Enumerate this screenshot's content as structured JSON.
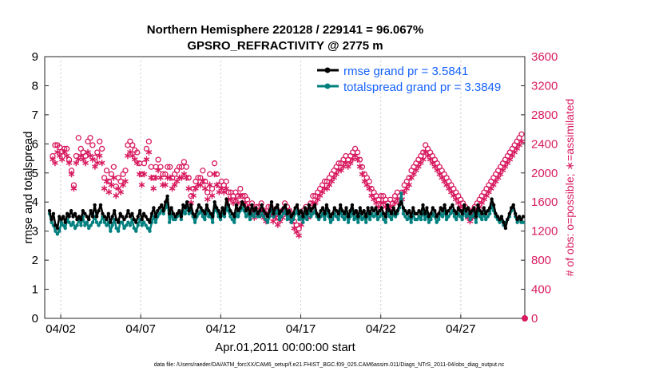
{
  "chart_data": {
    "type": "line",
    "title_line1": "Northern Hemisphere 220128 / 229141 = 96.067%",
    "title_line2": "GPSRO_REFRACTIVITY @ 2775 m",
    "xlabel": "Apr.01,2011 00:00:00 start",
    "ylabel_left": "rmse and totalspread",
    "ylabel_right": "# of obs: o=possible; ∗=assimilated",
    "footer": "data file: /Users/raeder/DAI/ATM_forcXX/CAM6_setup/f.e21.FHIST_BGC.f09_025.CAM6assim.011/Diags_NTrS_2011-04/obs_diag_output.nc",
    "x_ticks": [
      {
        "day": 2,
        "label": "04/02"
      },
      {
        "day": 7,
        "label": "04/07"
      },
      {
        "day": 12,
        "label": "04/12"
      },
      {
        "day": 17,
        "label": "04/17"
      },
      {
        "day": 22,
        "label": "04/22"
      },
      {
        "day": 27,
        "label": "04/27"
      }
    ],
    "xlim": [
      1,
      31
    ],
    "ylim_left": [
      0,
      9
    ],
    "yticks_left": [
      "0",
      "1",
      "2",
      "3",
      "4",
      "5",
      "6",
      "7",
      "8",
      "9"
    ],
    "ylim_right": [
      0,
      3600
    ],
    "yticks_right": [
      "0",
      "400",
      "800",
      "1200",
      "1600",
      "2000",
      "2400",
      "2800",
      "3200",
      "3600"
    ],
    "colors": {
      "rmse": "#000000",
      "spread": "#00807f",
      "obs": "#d81b60"
    },
    "series": [
      {
        "name": "rmse grand pr = 3.5841",
        "key": "rmse",
        "values": [
          3.7,
          3.4,
          3.6,
          3.2,
          3.1,
          3.5,
          3.4,
          3.5,
          3.3,
          3.6,
          3.5,
          3.7,
          3.5,
          3.6,
          3.4,
          3.5,
          3.4,
          3.7,
          3.6,
          3.5,
          3.4,
          3.7,
          3.5,
          3.9,
          3.5,
          3.7,
          3.9,
          3.6,
          3.5,
          3.4,
          3.6,
          3.3,
          3.5,
          3.7,
          3.4,
          3.3,
          3.6,
          3.5,
          3.4,
          3.5,
          3.7,
          3.5,
          3.6,
          3.4,
          3.3,
          3.5,
          3.7,
          3.4,
          3.6,
          3.5,
          3.4,
          3.3,
          3.6,
          3.8,
          3.5,
          3.7,
          3.8,
          3.9,
          3.7,
          4.0,
          4.2,
          3.6,
          3.8,
          3.6,
          3.5,
          3.6,
          3.7,
          3.5,
          3.9,
          3.8,
          4.0,
          3.7,
          3.9,
          3.6,
          3.5,
          3.7,
          3.9,
          3.8,
          3.7,
          3.6,
          3.9,
          3.7,
          3.6,
          3.5,
          4.0,
          3.8,
          3.7,
          3.5,
          3.8,
          3.6,
          4.1,
          3.9,
          3.7,
          3.6,
          3.5,
          3.9,
          3.7,
          3.8,
          4.0,
          3.9,
          3.7,
          3.8,
          3.6,
          3.9,
          3.7,
          3.8,
          3.6,
          3.7,
          3.9,
          3.7,
          3.6,
          3.5,
          3.7,
          4.0,
          3.6,
          3.8,
          3.9,
          3.6,
          3.7,
          3.8,
          3.9,
          3.6,
          3.7,
          3.5,
          3.6,
          3.8,
          3.9,
          3.6,
          3.7,
          3.5,
          3.8,
          3.6,
          3.9,
          3.7,
          3.8,
          3.9,
          3.6,
          3.5,
          3.7,
          3.8,
          3.6,
          3.9,
          3.7,
          3.5,
          3.6,
          3.8,
          3.7,
          3.6,
          3.9,
          3.7,
          3.6,
          3.8,
          3.5,
          3.7,
          3.9,
          3.6,
          3.7,
          3.5,
          3.8,
          3.6,
          3.7,
          3.5,
          3.8,
          3.6,
          3.8,
          3.7,
          3.8,
          3.6,
          3.7,
          3.8,
          3.6,
          3.5,
          3.9,
          3.7,
          3.6,
          3.8,
          3.6,
          3.7,
          3.9,
          4.0,
          3.8,
          3.7,
          3.6,
          3.7,
          3.5,
          3.8,
          3.6,
          3.6,
          3.7,
          3.6,
          3.9,
          3.6,
          3.8,
          3.5,
          3.6,
          3.8,
          3.7,
          3.5,
          3.6,
          3.8,
          3.7,
          3.9,
          3.6,
          3.7,
          3.8,
          3.9,
          3.7,
          3.6,
          3.8,
          3.7,
          3.6,
          3.9,
          3.7,
          3.8,
          3.6,
          3.7,
          3.8,
          3.5,
          3.9,
          3.7,
          3.6,
          3.8,
          3.6,
          3.7,
          3.8,
          4.1,
          3.9,
          3.6,
          3.5,
          3.4,
          3.5,
          3.3,
          3.1,
          3.4,
          3.6,
          3.8,
          3.9,
          3.6,
          3.4,
          3.5,
          3.4,
          3.5
        ]
      },
      {
        "name": "totalspread grand pr = 3.3849",
        "key": "spread",
        "values": [
          3.6,
          3.3,
          3.2,
          3.0,
          2.9,
          3.0,
          3.3,
          3.2,
          3.1,
          3.4,
          3.3,
          3.2,
          3.3,
          3.1,
          3.2,
          3.4,
          3.2,
          3.5,
          3.2,
          3.3,
          3.1,
          3.2,
          3.3,
          3.5,
          3.3,
          3.2,
          3.3,
          3.5,
          3.3,
          3.2,
          3.3,
          3.0,
          3.2,
          3.4,
          3.1,
          3.0,
          3.3,
          3.3,
          3.1,
          3.2,
          3.3,
          3.2,
          3.4,
          3.1,
          3.0,
          3.2,
          3.4,
          3.2,
          3.3,
          3.2,
          3.1,
          3.0,
          3.3,
          3.5,
          3.3,
          3.5,
          3.6,
          3.7,
          3.6,
          3.8,
          4.1,
          3.3,
          3.6,
          3.4,
          3.4,
          3.5,
          3.6,
          3.4,
          3.7,
          3.6,
          3.8,
          3.6,
          3.7,
          3.5,
          3.3,
          3.5,
          3.6,
          3.7,
          3.5,
          3.4,
          3.7,
          3.5,
          3.5,
          3.3,
          3.8,
          3.7,
          3.5,
          3.4,
          3.6,
          3.5,
          3.8,
          3.7,
          3.5,
          3.4,
          3.3,
          3.6,
          3.5,
          3.7,
          3.8,
          3.7,
          3.5,
          3.6,
          3.4,
          3.6,
          3.5,
          3.7,
          3.5,
          3.5,
          3.6,
          3.5,
          3.4,
          3.3,
          3.5,
          3.8,
          3.5,
          3.6,
          3.7,
          3.4,
          3.5,
          3.6,
          3.7,
          3.4,
          3.5,
          3.3,
          3.4,
          3.6,
          3.7,
          3.4,
          3.5,
          3.3,
          3.6,
          3.4,
          3.7,
          3.5,
          3.6,
          3.7,
          3.5,
          3.4,
          3.5,
          3.6,
          3.4,
          3.7,
          3.5,
          3.3,
          3.4,
          3.6,
          3.5,
          3.4,
          3.7,
          3.5,
          3.4,
          3.6,
          3.3,
          3.5,
          3.7,
          3.4,
          3.5,
          3.3,
          3.6,
          3.4,
          3.5,
          3.3,
          3.6,
          3.4,
          3.6,
          3.5,
          3.6,
          3.4,
          3.5,
          3.6,
          3.4,
          3.3,
          3.7,
          3.5,
          3.4,
          3.6,
          3.5,
          3.6,
          3.8,
          4.3,
          3.6,
          3.5,
          3.4,
          3.5,
          3.3,
          3.6,
          3.4,
          3.4,
          3.5,
          3.4,
          3.7,
          3.4,
          3.6,
          3.3,
          3.4,
          3.6,
          3.5,
          3.3,
          3.4,
          3.6,
          3.5,
          3.7,
          3.4,
          3.5,
          3.6,
          3.7,
          3.5,
          3.4,
          3.6,
          3.5,
          3.4,
          3.7,
          3.5,
          3.6,
          3.4,
          3.5,
          3.6,
          3.3,
          3.7,
          3.5,
          3.4,
          3.6,
          3.4,
          3.5,
          3.6,
          3.9,
          3.7,
          3.5,
          3.4,
          3.3,
          3.4,
          3.2,
          3.3,
          3.4,
          3.5,
          3.7,
          3.9,
          3.5,
          3.3,
          3.4,
          3.3,
          3.3
        ]
      },
      {
        "name": "possible",
        "key": "possible",
        "values": [
          2200,
          2350,
          2350,
          2320,
          2260,
          2300,
          2300,
          2150,
          2000,
          1800,
          2200,
          2450,
          2300,
          2250,
          2200,
          2400,
          2450,
          2350,
          2180,
          2250,
          2400,
          2300,
          1900,
          2000,
          1850,
          1950,
          2050,
          1780,
          1900,
          1850,
          1950,
          2000,
          2350,
          2400,
          2350,
          2280,
          2250,
          2100,
          1950,
          2100,
          2300,
          2400,
          2050,
          1900,
          2050,
          2150,
          2050,
          1950,
          1950,
          2050,
          2050,
          1900,
          1950,
          2000,
          2050,
          2050,
          2120,
          2050,
          1900,
          1650,
          1750,
          1850,
          1900,
          1900,
          2000,
          1850,
          1700,
          1950,
          1750,
          2100,
          1950,
          1800,
          1850,
          1800,
          1850,
          1700,
          1700,
          1650,
          1700,
          1650,
          1750,
          1650,
          1650,
          1600,
          1500,
          1550,
          1450,
          1500,
          1500,
          1550,
          1450,
          1400,
          1500,
          1500,
          1400,
          1450,
          1350,
          1400,
          1450,
          1550,
          1500,
          1450,
          1400,
          1300,
          1250,
          1200,
          1350,
          1450,
          1500,
          1450,
          1550,
          1650,
          1650,
          1700,
          1750,
          1800,
          1850,
          1850,
          1900,
          1950,
          2000,
          2050,
          2100,
          2100,
          2150,
          2200,
          2150,
          2200,
          2250,
          2300,
          2250,
          2150,
          2050,
          1950,
          1900,
          1850,
          1750,
          1700,
          1650,
          1600,
          1650,
          1650,
          1600,
          1550,
          1600,
          1550,
          1650,
          1700,
          1650,
          1700,
          1800,
          1850,
          1900,
          2000,
          2050,
          2100,
          2150,
          2200,
          2250,
          2350,
          2300,
          2250,
          2200,
          2150,
          2100,
          2050,
          2000,
          1950,
          1900,
          1850,
          1800,
          1750,
          1700,
          1650,
          1600,
          1550,
          1500,
          1450,
          1400,
          1450,
          1500,
          1550,
          1600,
          1650,
          1700,
          1750,
          1800,
          1850,
          1900,
          1950,
          2000,
          2050,
          2100,
          2150,
          2200,
          2250,
          2300,
          2350,
          2400,
          2450,
          2500
        ]
      },
      {
        "name": "assimilated",
        "key": "assimilated",
        "values": [
          2200,
          2150,
          2300,
          2250,
          2200,
          2300,
          2250,
          2150,
          2000,
          1800,
          2150,
          2200,
          2250,
          2200,
          2150,
          2300,
          2250,
          2200,
          2100,
          2150,
          2250,
          2150,
          1800,
          1900,
          1750,
          1850,
          1950,
          1700,
          1800,
          1750,
          1850,
          1900,
          2250,
          2300,
          2250,
          2200,
          2150,
          2000,
          1850,
          2000,
          2200,
          2300,
          1950,
          1800,
          1950,
          2050,
          1950,
          1850,
          1850,
          1950,
          1950,
          1800,
          1850,
          1900,
          1950,
          1950,
          2000,
          1950,
          1800,
          1600,
          1700,
          1800,
          1850,
          1850,
          1900,
          1800,
          1650,
          1850,
          1700,
          2000,
          1850,
          1750,
          1800,
          1750,
          1800,
          1650,
          1650,
          1600,
          1650,
          1600,
          1700,
          1600,
          1600,
          1550,
          1450,
          1500,
          1400,
          1450,
          1450,
          1500,
          1400,
          1350,
          1450,
          1450,
          1350,
          1400,
          1300,
          1350,
          1400,
          1500,
          1450,
          1400,
          1350,
          1250,
          1200,
          1150,
          1300,
          1400,
          1450,
          1400,
          1500,
          1600,
          1600,
          1650,
          1700,
          1750,
          1800,
          1800,
          1850,
          1900,
          1950,
          2000,
          2050,
          2050,
          2100,
          2150,
          2100,
          2150,
          2200,
          2250,
          2200,
          2100,
          2000,
          1900,
          1850,
          1800,
          1700,
          1650,
          1600,
          1550,
          1600,
          1600,
          1550,
          1500,
          1550,
          1500,
          1600,
          1650,
          1600,
          1650,
          1750,
          1800,
          1850,
          1950,
          2000,
          2050,
          2100,
          2150,
          2200,
          2300,
          2250,
          2200,
          2150,
          2100,
          2050,
          2000,
          1950,
          1900,
          1850,
          1800,
          1750,
          1700,
          1650,
          1600,
          1550,
          1500,
          1450,
          1400,
          1350,
          1400,
          1450,
          1500,
          1550,
          1600,
          1650,
          1700,
          1750,
          1800,
          1850,
          1900,
          1950,
          2000,
          2050,
          2100,
          2150,
          2200,
          2250,
          2300,
          2350,
          2400,
          2450
        ]
      }
    ],
    "last_point_possible": 0,
    "last_point_assimilated": 0
  }
}
